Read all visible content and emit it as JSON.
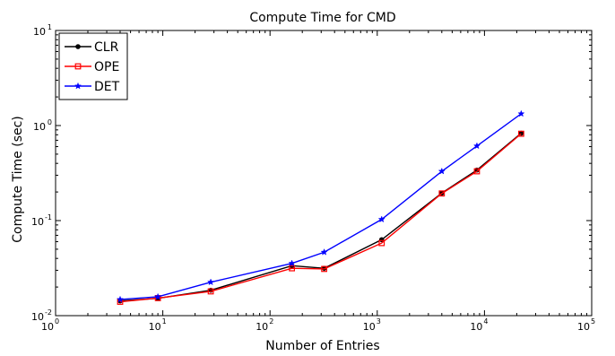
{
  "chart_data": {
    "type": "line",
    "title": "Compute Time for CMD",
    "xlabel": "Number of Entries",
    "ylabel": "Compute Time (sec)",
    "xscale": "log",
    "yscale": "log",
    "xlim": [
      1,
      100000
    ],
    "ylim": [
      0.01,
      10
    ],
    "x_ticks": [
      {
        "base": "10",
        "exp": "0"
      },
      {
        "base": "10",
        "exp": "1"
      },
      {
        "base": "10",
        "exp": "2"
      },
      {
        "base": "10",
        "exp": "3"
      },
      {
        "base": "10",
        "exp": "4"
      },
      {
        "base": "10",
        "exp": "5"
      }
    ],
    "y_ticks": [
      {
        "base": "10",
        "exp": "-2"
      },
      {
        "base": "10",
        "exp": "-1"
      },
      {
        "base": "10",
        "exp": "0"
      },
      {
        "base": "10",
        "exp": "1"
      }
    ],
    "grid": false,
    "legend_position": "top-left",
    "x": [
      4,
      9,
      28,
      160,
      320,
      1100,
      4000,
      8500,
      22000
    ],
    "series": [
      {
        "name": "CLR",
        "color": "#000000",
        "marker": "dot",
        "values": [
          0.0143,
          0.0152,
          0.0185,
          0.0335,
          0.0315,
          0.063,
          0.195,
          0.34,
          0.83
        ]
      },
      {
        "name": "OPE",
        "color": "#ff0000",
        "marker": "square",
        "values": [
          0.014,
          0.0153,
          0.018,
          0.0315,
          0.031,
          0.058,
          0.193,
          0.33,
          0.82
        ]
      },
      {
        "name": "DET",
        "color": "#0000ff",
        "marker": "star",
        "values": [
          0.0148,
          0.0158,
          0.0225,
          0.0355,
          0.0465,
          0.103,
          0.33,
          0.61,
          1.33
        ]
      }
    ]
  }
}
